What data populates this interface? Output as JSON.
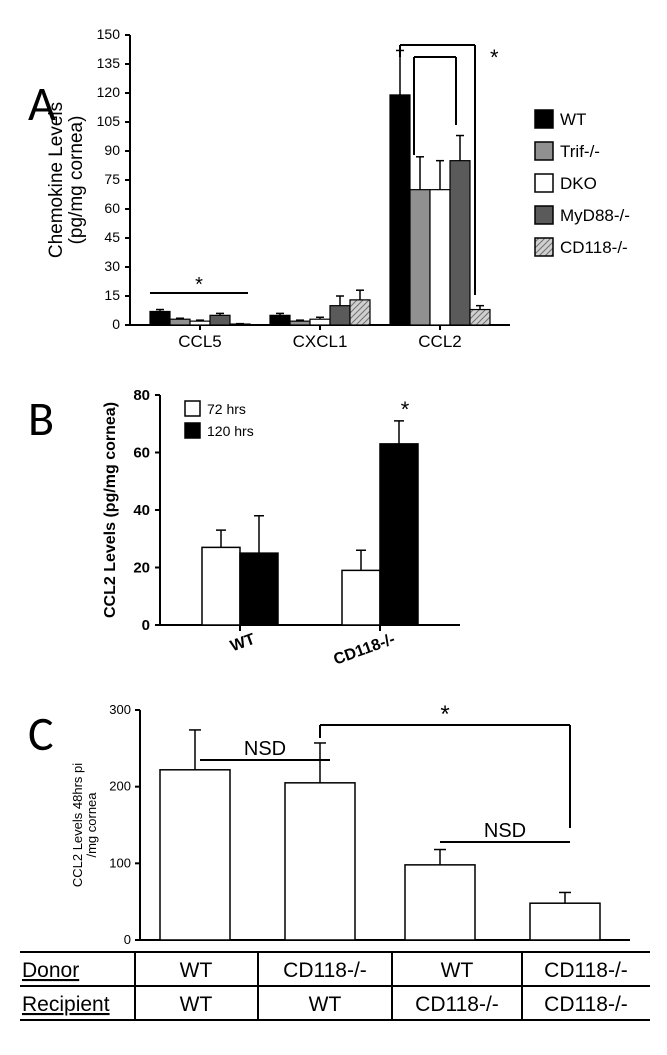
{
  "panelA": {
    "label": "A",
    "type": "bar",
    "ylabel_line1": "Chemokine Levels",
    "ylabel_line2": "(pg/mg cornea)",
    "ylim": [
      0,
      150
    ],
    "ytick_step": 15,
    "categories": [
      "CCL5",
      "CXCL1",
      "CCL2"
    ],
    "series": [
      {
        "name": "WT",
        "fill": "#000000",
        "hatch": false
      },
      {
        "name": "Trif-/-",
        "fill": "#909090",
        "hatch": false
      },
      {
        "name": "DKO",
        "fill": "#ffffff",
        "hatch": false
      },
      {
        "name": "MyD88-/-",
        "fill": "#5a5a5a",
        "hatch": false
      },
      {
        "name": "CD118-/-",
        "fill": "#d0d0d0",
        "hatch": true
      }
    ],
    "values": [
      [
        7,
        3,
        2,
        5,
        0.5
      ],
      [
        5,
        2,
        3,
        10,
        13
      ],
      [
        119,
        70,
        70,
        85,
        8
      ]
    ],
    "errors": [
      [
        1,
        0.5,
        0.5,
        1,
        0.2
      ],
      [
        1,
        0.5,
        1,
        5,
        5
      ],
      [
        23,
        17,
        15,
        13,
        2
      ]
    ],
    "sig_markers": [
      {
        "text": "*",
        "group": 0,
        "span": [
          0,
          4
        ],
        "y": 14
      },
      {
        "text": "*",
        "complex": true
      }
    ]
  },
  "panelB": {
    "label": "B",
    "type": "bar",
    "ylabel": "CCL2 Levels (pg/mg cornea)",
    "ylim": [
      0,
      80
    ],
    "ytick_step": 20,
    "categories": [
      "WT",
      "CD118-/-"
    ],
    "series": [
      {
        "name": "72 hrs",
        "fill": "#ffffff"
      },
      {
        "name": "120 hrs",
        "fill": "#000000"
      }
    ],
    "values": [
      [
        27,
        25
      ],
      [
        19,
        63
      ]
    ],
    "errors": [
      [
        6,
        13
      ],
      [
        7,
        8
      ]
    ],
    "sig_markers": [
      {
        "text": "*",
        "group": 1,
        "bar": 1,
        "y": 73
      }
    ]
  },
  "panelC": {
    "label": "C",
    "type": "bar",
    "ylabel_line1": "CCL2 Levels 48hrs pi",
    "ylabel_line2": "/mg cornea",
    "ylim": [
      0,
      300
    ],
    "ytick_step": 100,
    "bar_fill": "#ffffff",
    "values": [
      222,
      205,
      98,
      48
    ],
    "errors": [
      52,
      52,
      20,
      14
    ],
    "nsd_label": "NSD",
    "donor_label": "Donor",
    "recipient_label": "Recipient",
    "table": {
      "donor": [
        "WT",
        "CD118-/-",
        "WT",
        "CD118-/-"
      ],
      "recipient": [
        "WT",
        "WT",
        "CD118-/-",
        "CD118-/-"
      ]
    },
    "sig_markers": [
      {
        "text": "*",
        "from": 1,
        "to": 3,
        "y": 280
      }
    ]
  }
}
